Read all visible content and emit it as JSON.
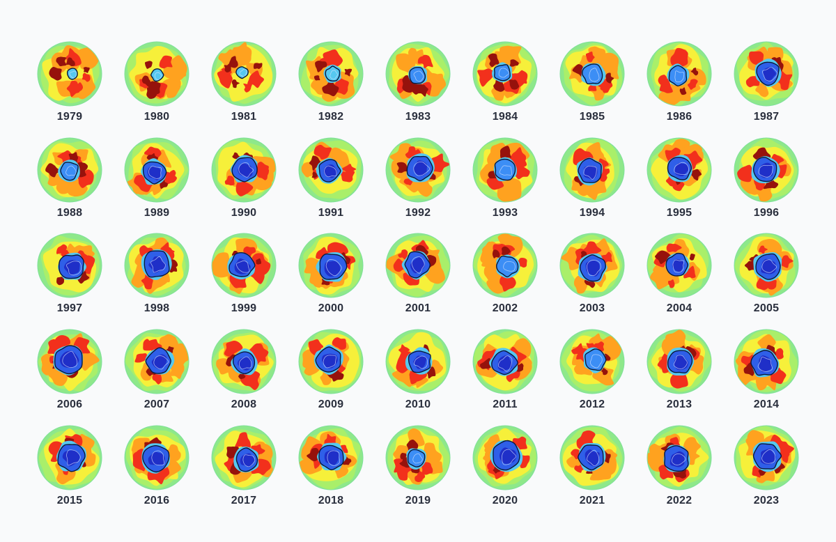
{
  "years": [
    "1979",
    "1980",
    "1981",
    "1982",
    "1983",
    "1984",
    "1985",
    "1986",
    "1987",
    "1988",
    "1989",
    "1990",
    "1991",
    "1992",
    "1993",
    "1994",
    "1995",
    "1996",
    "1997",
    "1998",
    "1999",
    "2000",
    "2001",
    "2002",
    "2003",
    "2004",
    "2005",
    "2006",
    "2007",
    "2008",
    "2009",
    "2010",
    "2011",
    "2012",
    "2013",
    "2014",
    "2015",
    "2016",
    "2017",
    "2018",
    "2019",
    "2020",
    "2021",
    "2022",
    "2023"
  ],
  "hole_level": [
    0.05,
    0.08,
    0.08,
    0.2,
    0.3,
    0.32,
    0.5,
    0.42,
    0.62,
    0.38,
    0.6,
    0.66,
    0.55,
    0.72,
    0.52,
    0.64,
    0.63,
    0.68,
    0.7,
    0.8,
    0.68,
    0.82,
    0.7,
    0.5,
    0.76,
    0.55,
    0.75,
    0.85,
    0.7,
    0.6,
    0.72,
    0.62,
    0.7,
    0.52,
    0.65,
    0.72,
    0.82,
    0.75,
    0.58,
    0.7,
    0.35,
    0.85,
    0.74,
    0.72,
    0.78
  ],
  "colors": {
    "background": "#f9fafb",
    "label": "#2a2f3d",
    "outer_rim": "#8ee88a",
    "green": "#a9ef6a",
    "yellow": "#f6f03a",
    "orange": "#ffa21f",
    "red": "#f2301c",
    "dark_red": "#96120c",
    "cyan": "#56c8f0",
    "light_blue": "#3c8ef5",
    "blue": "#2f5fe8",
    "deep_blue": "#1f2fc8",
    "contour": "#0a1a3a"
  }
}
